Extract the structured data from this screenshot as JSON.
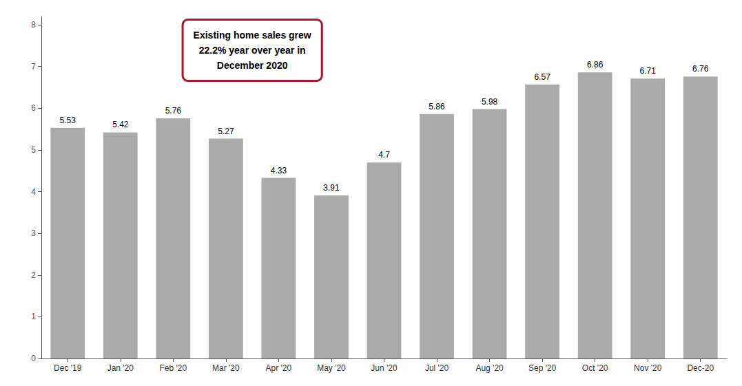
{
  "chart_data": {
    "type": "bar",
    "categories": [
      "Dec '19",
      "Jan '20",
      "Feb '20",
      "Mar '20",
      "Apr '20",
      "May '20",
      "Jun '20",
      "Jul '20",
      "Aug '20",
      "Sep '20",
      "Oct '20",
      "Nov '20",
      "Dec-20"
    ],
    "values": [
      5.53,
      5.42,
      5.76,
      5.27,
      4.33,
      3.91,
      4.7,
      5.86,
      5.98,
      6.57,
      6.86,
      6.71,
      6.76
    ],
    "color": "#aaaaaa",
    "ylim": [
      0,
      8.2
    ],
    "yticks": [
      0,
      1,
      2,
      3,
      4,
      5,
      6,
      7,
      8
    ],
    "grid": false,
    "data_labels": true,
    "annotations": [
      {
        "text": "Existing home sales grew\n22.2% year over year in\nDecember 2020",
        "color": "#9b1c2e"
      }
    ]
  }
}
